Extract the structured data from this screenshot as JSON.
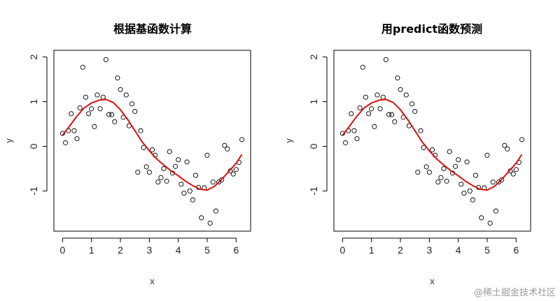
{
  "watermark": "@稀土掘金技术社区",
  "chart_data": [
    {
      "type": "scatter",
      "title": "根据基函数计算",
      "xlabel": "x",
      "ylabel": "y",
      "xlim": [
        -0.3,
        6.5
      ],
      "ylim": [
        -1.9,
        2.15
      ],
      "xticks": [
        0,
        1,
        2,
        3,
        4,
        5,
        6
      ],
      "xtick_labels": [
        "0",
        "1",
        "2",
        "3",
        "4",
        "5",
        "6"
      ],
      "yticks": [
        -1,
        0,
        1,
        2
      ],
      "ytick_labels": [
        "-1",
        "0",
        "1",
        "2"
      ],
      "points": {
        "x": [
          0.0,
          0.1,
          0.2,
          0.3,
          0.4,
          0.5,
          0.6,
          0.7,
          0.8,
          0.9,
          1.0,
          1.1,
          1.2,
          1.3,
          1.4,
          1.5,
          1.6,
          1.7,
          1.8,
          1.9,
          2.0,
          2.1,
          2.2,
          2.3,
          2.4,
          2.5,
          2.6,
          2.7,
          2.8,
          2.9,
          3.0,
          3.1,
          3.2,
          3.3,
          3.4,
          3.5,
          3.6,
          3.7,
          3.8,
          3.9,
          4.0,
          4.1,
          4.2,
          4.3,
          4.4,
          4.5,
          4.6,
          4.7,
          4.8,
          4.9,
          5.0,
          5.1,
          5.2,
          5.3,
          5.4,
          5.5,
          5.6,
          5.7,
          5.8,
          5.9,
          6.0,
          6.1,
          6.2
        ],
        "y": [
          0.29,
          0.08,
          0.35,
          0.73,
          0.35,
          0.17,
          0.86,
          1.77,
          1.1,
          0.73,
          0.84,
          0.44,
          1.15,
          0.84,
          1.1,
          1.94,
          0.71,
          0.71,
          0.55,
          1.53,
          1.27,
          0.65,
          1.15,
          0.46,
          0.95,
          0.78,
          -0.58,
          0.35,
          -0.03,
          -0.46,
          -0.58,
          -0.08,
          -0.2,
          -0.8,
          -0.7,
          -0.5,
          -0.78,
          -0.12,
          -0.6,
          -0.45,
          -0.3,
          -0.85,
          -1.05,
          -0.35,
          -1.0,
          -1.2,
          -0.65,
          -0.92,
          -1.6,
          -0.93,
          -0.2,
          -1.72,
          -0.8,
          -1.45,
          -0.8,
          -0.75,
          0.02,
          -0.06,
          -0.55,
          -0.62,
          -0.52,
          -0.36,
          0.15
        ]
      },
      "fit_line": {
        "color": "#dd1111",
        "x": [
          0.0,
          0.25,
          0.5,
          0.75,
          1.0,
          1.25,
          1.5,
          1.75,
          2.0,
          2.25,
          2.5,
          2.75,
          3.0,
          3.25,
          3.5,
          3.75,
          4.0,
          4.25,
          4.5,
          4.75,
          5.0,
          5.25,
          5.5,
          5.75,
          6.0,
          6.2
        ],
        "y": [
          0.25,
          0.46,
          0.68,
          0.86,
          0.97,
          1.03,
          1.05,
          0.98,
          0.82,
          0.6,
          0.35,
          0.1,
          -0.1,
          -0.28,
          -0.42,
          -0.55,
          -0.66,
          -0.78,
          -0.88,
          -0.96,
          -0.98,
          -0.9,
          -0.74,
          -0.56,
          -0.38,
          -0.18
        ]
      },
      "point_color": "#000000"
    },
    {
      "type": "scatter",
      "title": "用predict函数预测",
      "xlabel": "x",
      "ylabel": "y",
      "xlim": [
        -0.3,
        6.5
      ],
      "ylim": [
        -1.9,
        2.15
      ],
      "xticks": [
        0,
        1,
        2,
        3,
        4,
        5,
        6
      ],
      "xtick_labels": [
        "0",
        "1",
        "2",
        "3",
        "4",
        "5",
        "6"
      ],
      "yticks": [
        -1,
        0,
        1,
        2
      ],
      "ytick_labels": [
        "-1",
        "0",
        "1",
        "2"
      ],
      "points": {
        "x": [
          0.0,
          0.1,
          0.2,
          0.3,
          0.4,
          0.5,
          0.6,
          0.7,
          0.8,
          0.9,
          1.0,
          1.1,
          1.2,
          1.3,
          1.4,
          1.5,
          1.6,
          1.7,
          1.8,
          1.9,
          2.0,
          2.1,
          2.2,
          2.3,
          2.4,
          2.5,
          2.6,
          2.7,
          2.8,
          2.9,
          3.0,
          3.1,
          3.2,
          3.3,
          3.4,
          3.5,
          3.6,
          3.7,
          3.8,
          3.9,
          4.0,
          4.1,
          4.2,
          4.3,
          4.4,
          4.5,
          4.6,
          4.7,
          4.8,
          4.9,
          5.0,
          5.1,
          5.2,
          5.3,
          5.4,
          5.5,
          5.6,
          5.7,
          5.8,
          5.9,
          6.0,
          6.1,
          6.2
        ],
        "y": [
          0.29,
          0.08,
          0.35,
          0.73,
          0.35,
          0.17,
          0.86,
          1.77,
          1.1,
          0.73,
          0.84,
          0.44,
          1.15,
          0.84,
          1.1,
          1.94,
          0.71,
          0.71,
          0.55,
          1.53,
          1.27,
          0.65,
          1.15,
          0.46,
          0.95,
          0.78,
          -0.58,
          0.35,
          -0.03,
          -0.46,
          -0.58,
          -0.08,
          -0.2,
          -0.8,
          -0.7,
          -0.5,
          -0.78,
          -0.12,
          -0.6,
          -0.45,
          -0.3,
          -0.85,
          -1.05,
          -0.35,
          -1.0,
          -1.2,
          -0.65,
          -0.92,
          -1.6,
          -0.93,
          -0.2,
          -1.72,
          -0.8,
          -1.45,
          -0.8,
          -0.75,
          0.02,
          -0.06,
          -0.55,
          -0.62,
          -0.52,
          -0.36,
          0.15
        ]
      },
      "fit_line": {
        "color": "#dd1111",
        "x": [
          0.0,
          0.25,
          0.5,
          0.75,
          1.0,
          1.25,
          1.5,
          1.75,
          2.0,
          2.25,
          2.5,
          2.75,
          3.0,
          3.25,
          3.5,
          3.75,
          4.0,
          4.25,
          4.5,
          4.75,
          5.0,
          5.25,
          5.5,
          5.75,
          6.0,
          6.2
        ],
        "y": [
          0.25,
          0.46,
          0.68,
          0.86,
          0.97,
          1.03,
          1.05,
          0.98,
          0.82,
          0.6,
          0.35,
          0.1,
          -0.1,
          -0.28,
          -0.42,
          -0.55,
          -0.66,
          -0.78,
          -0.88,
          -0.96,
          -0.98,
          -0.9,
          -0.74,
          -0.56,
          -0.38,
          -0.18
        ]
      },
      "point_color": "#000000"
    }
  ]
}
